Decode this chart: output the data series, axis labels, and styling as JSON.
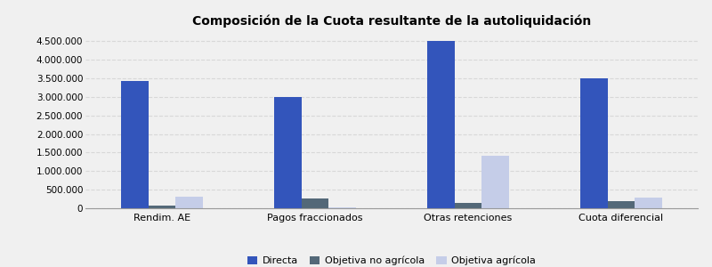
{
  "title": "Composición de la Cuota resultante de la autoliquidación",
  "categories": [
    "Rendim. AE",
    "Pagos fraccionados",
    "Otras retenciones",
    "Cuota diferencial"
  ],
  "series": {
    "Directa": [
      3420000,
      3000000,
      4500000,
      3500000
    ],
    "Objetiva no agrícola": [
      75000,
      270000,
      145000,
      195000
    ],
    "Objetiva agrícola": [
      310000,
      28000,
      1415000,
      285000
    ]
  },
  "colors": {
    "Directa": "#3355bb",
    "Objetiva no agrícola": "#536878",
    "Objetiva agrícola": "#c5cde8"
  },
  "ylim": [
    0,
    4750000
  ],
  "yticks": [
    0,
    500000,
    1000000,
    1500000,
    2000000,
    2500000,
    3000000,
    3500000,
    4000000,
    4500000
  ],
  "background_color": "#f0f0f0",
  "grid_color": "#d8d8d8",
  "title_fontsize": 10,
  "bar_width": 0.18
}
